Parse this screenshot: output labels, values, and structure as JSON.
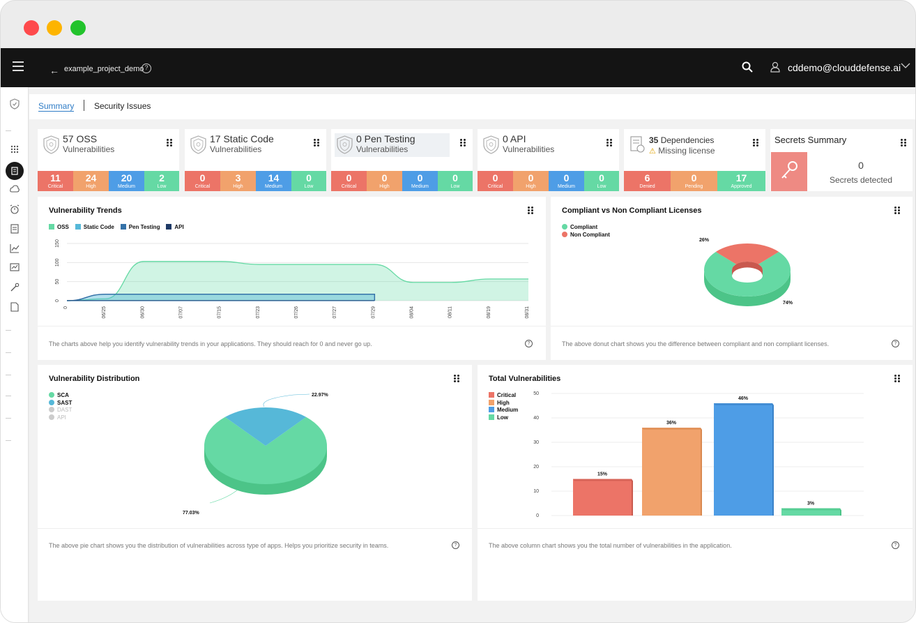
{
  "app": {
    "project": "example_project_demo",
    "user_email": "cddemo@clouddefense.ai"
  },
  "tabs": [
    "Summary",
    "Security Issues"
  ],
  "colors": {
    "critical": "#ec7467",
    "high": "#f1a26c",
    "medium": "#4e9de6",
    "low": "#65d9a4",
    "approved": "#65d9a4",
    "oss": "#65d9a4",
    "static_code": "#56b8d8",
    "pen_testing": "#3572a8",
    "api": "#1e3a66",
    "sidebar_active": "#1a1a1a",
    "secrets_tile": "#ee8a83"
  },
  "icons": [
    "menu-icon",
    "back-arrow-icon",
    "help-icon",
    "search-icon",
    "user-icon",
    "chevron-down-icon",
    "shield-icon",
    "dashboard-icon",
    "document-icon",
    "cloud-icon",
    "alarm-icon",
    "report-icon",
    "chart-icon",
    "analytics-icon",
    "wrench-icon",
    "file-icon",
    "key-icon",
    "warning-icon",
    "drag-handle-icon"
  ],
  "cards": [
    {
      "title": "57 OSS",
      "subtitle": "Vulnerabilities",
      "counts": [
        {
          "value": "11",
          "label": "Critical"
        },
        {
          "value": "24",
          "label": "High"
        },
        {
          "value": "20",
          "label": "Medium"
        },
        {
          "value": "2",
          "label": "Low"
        }
      ]
    },
    {
      "title": "17 Static Code",
      "subtitle": "Vulnerabilities",
      "counts": [
        {
          "value": "0",
          "label": "Critical"
        },
        {
          "value": "3",
          "label": "High"
        },
        {
          "value": "14",
          "label": "Medium"
        },
        {
          "value": "0",
          "label": "Low"
        }
      ]
    },
    {
      "title": "0 Pen Testing",
      "subtitle": "Vulnerabilities",
      "counts": [
        {
          "value": "0",
          "label": "Critical"
        },
        {
          "value": "0",
          "label": "High"
        },
        {
          "value": "0",
          "label": "Medium"
        },
        {
          "value": "0",
          "label": "Low"
        }
      ]
    },
    {
      "title": "0 API",
      "subtitle": "Vulnerabilities",
      "counts": [
        {
          "value": "0",
          "label": "Critical"
        },
        {
          "value": "0",
          "label": "High"
        },
        {
          "value": "0",
          "label": "Medium"
        },
        {
          "value": "0",
          "label": "Low"
        }
      ]
    }
  ],
  "dependencies": {
    "count": "35",
    "label1": "Dependencies",
    "label2": "Missing license",
    "counts": [
      {
        "value": "6",
        "label": "Denied"
      },
      {
        "value": "0",
        "label": "Pending"
      },
      {
        "value": "17",
        "label": "Approved"
      }
    ]
  },
  "secrets": {
    "title": "Secrets Summary",
    "value": "0",
    "label": "Secrets detected"
  },
  "panels": {
    "trends": {
      "title": "Vulnerability Trends",
      "footer": "The charts above help you identify vulnerability trends in your applications. They should reach for 0 and never go up."
    },
    "licenses": {
      "title": "Compliant vs Non Compliant Licenses",
      "footer": "The above donut chart shows you the difference between compliant and non compliant licenses."
    },
    "distribution": {
      "title": "Vulnerability Distribution",
      "footer": "The above pie chart shows you the distribution of vulnerabilities across type of apps. Helps you prioritize security in teams."
    },
    "total": {
      "title": "Total Vulnerabilities",
      "footer": "The above column chart shows you the total number of vulnerabilities in the application."
    }
  },
  "chart_data": [
    {
      "type": "area",
      "title": "Vulnerability Trends",
      "x": [
        "0",
        "06/25",
        "06/30",
        "07/07",
        "07/15",
        "07/23",
        "07/26",
        "07/27",
        "07/29",
        "08/04",
        "08/11",
        "08/19",
        "08/31"
      ],
      "ylim": [
        0,
        150
      ],
      "yticks": [
        0,
        50,
        100,
        150
      ],
      "grid": true,
      "legend": "top-left",
      "series": [
        {
          "name": "OSS",
          "values": [
            0,
            5,
            103,
            103,
            103,
            95,
            95,
            95,
            95,
            48,
            48,
            57,
            57
          ]
        },
        {
          "name": "Static Code",
          "values": [
            0,
            17,
            17,
            17,
            17,
            17,
            17,
            17,
            17,
            null,
            null,
            null,
            null
          ]
        },
        {
          "name": "Pen Testing",
          "values": [
            0,
            0,
            0,
            0,
            0,
            0,
            0,
            0,
            0,
            null,
            null,
            null,
            null
          ]
        },
        {
          "name": "API",
          "values": [
            0,
            0,
            0,
            0,
            0,
            0,
            0,
            0,
            0,
            null,
            null,
            null,
            null
          ]
        }
      ]
    },
    {
      "type": "pie",
      "title": "Compliant vs Non Compliant Licenses",
      "categories": [
        "Compliant",
        "Non Compliant"
      ],
      "values": [
        74,
        26
      ],
      "labels": [
        "74%",
        "26%"
      ],
      "legend": "top-left"
    },
    {
      "type": "pie",
      "title": "Vulnerability Distribution",
      "categories": [
        "SCA",
        "SAST",
        "DAST",
        "API"
      ],
      "values": [
        77.03,
        22.97,
        0,
        0
      ],
      "labels": [
        "77.03%",
        "22.97%"
      ],
      "legend": "top-left"
    },
    {
      "type": "bar",
      "title": "Total Vulnerabilities",
      "categories": [
        "Critical",
        "High",
        "Medium",
        "Low"
      ],
      "values": [
        15,
        36,
        46,
        3
      ],
      "labels": [
        "15%",
        "36%",
        "46%",
        "3%"
      ],
      "ylim": [
        0,
        50
      ],
      "yticks": [
        0,
        10,
        20,
        30,
        40,
        50
      ],
      "legend": "top-left"
    }
  ]
}
